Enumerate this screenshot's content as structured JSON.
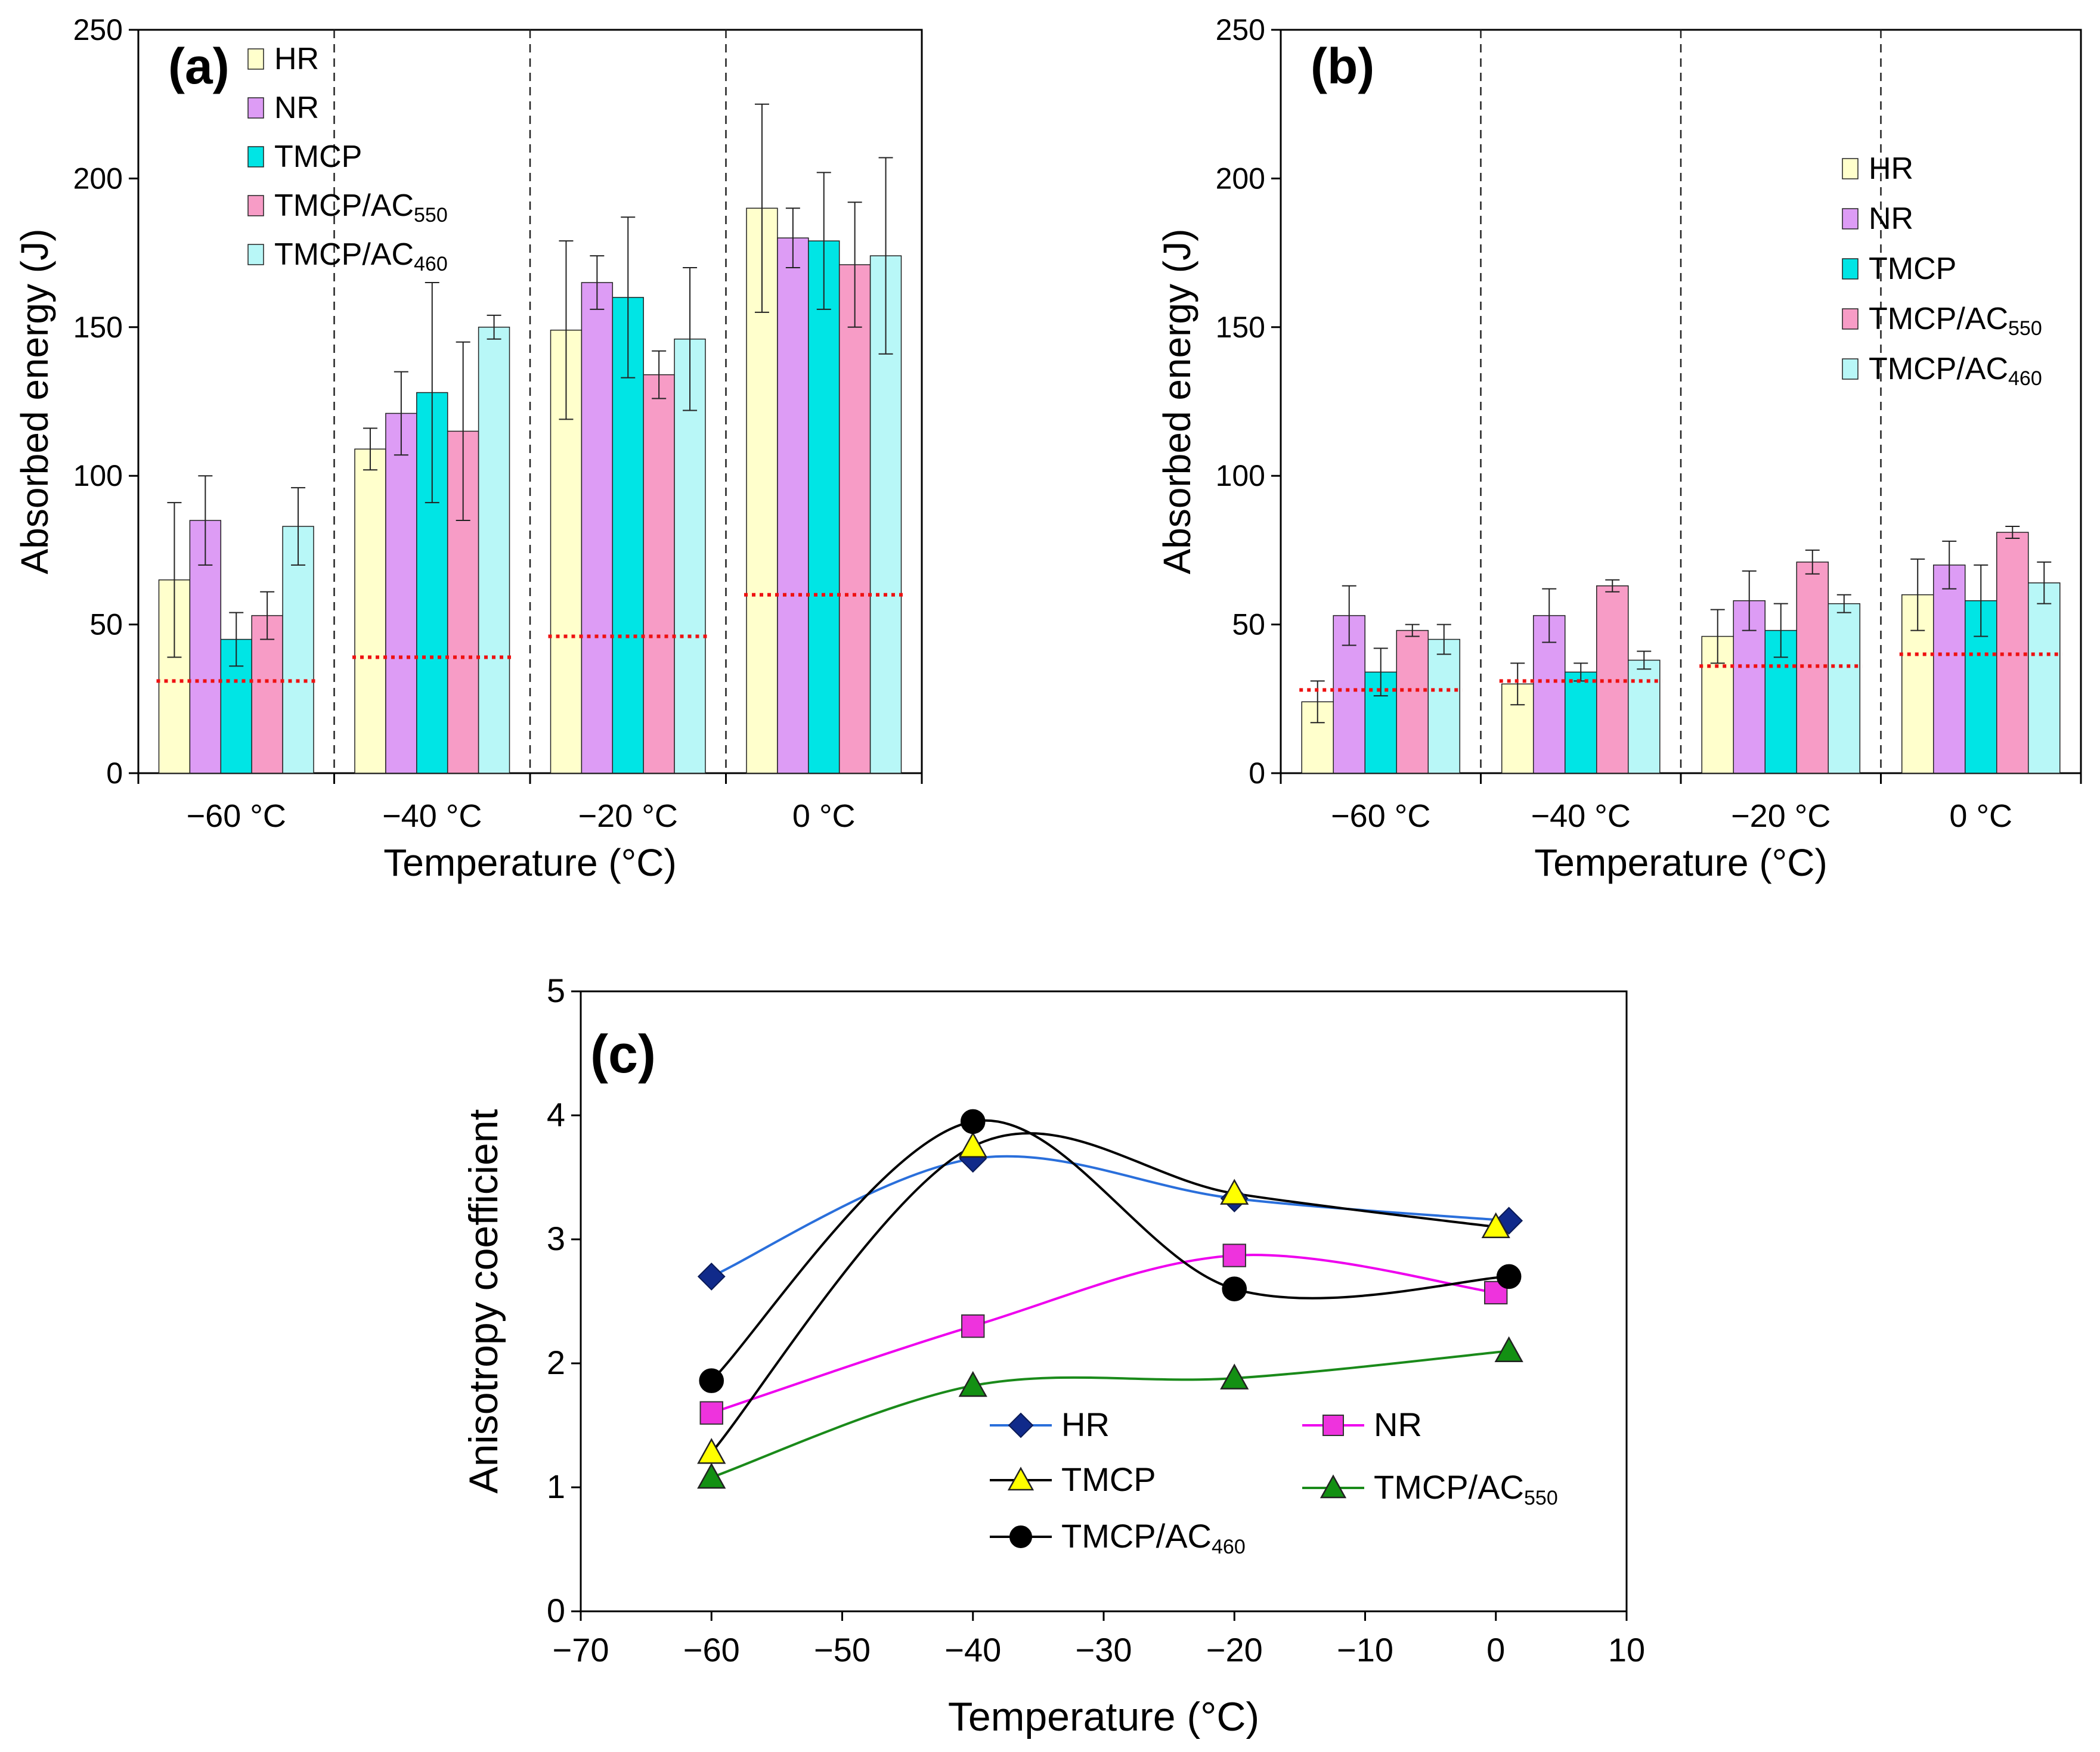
{
  "colors": {
    "HR": "#ffffcc",
    "NR": "#dd9cf5",
    "TMCP": "#00e5e5",
    "TMCP/AC550": "#f79cc6",
    "TMCP/AC460": "#b8f7f7",
    "threshold": "#ee1111",
    "line_HR": "#2a6fdb",
    "line_NR": "#ee00ee",
    "line_TMCP": "#000000",
    "line_AC550": "#1a8a1a",
    "line_AC460": "#000000",
    "marker_HR": "#102a8a",
    "marker_NR": "#ee33dd",
    "marker_TMCP": "#ffff00",
    "marker_AC550": "#139013",
    "marker_AC460": "#000000"
  },
  "chart_data": [
    {
      "id": "a",
      "type": "bar",
      "panel_label": "(a)",
      "categories": [
        "−60 °C",
        "−40 °C",
        "−20 °C",
        "0 °C"
      ],
      "xlabel": "Temperature (°C)",
      "ylabel": "Absorbed energy (J)",
      "ylim": [
        0,
        250
      ],
      "yticks": [
        0,
        50,
        100,
        150,
        200,
        250
      ],
      "legend_position": "top-left",
      "series": [
        {
          "key": "HR",
          "name": "HR",
          "values": [
            65,
            109,
            149,
            190
          ],
          "err": [
            26,
            7,
            30,
            35
          ]
        },
        {
          "key": "NR",
          "name": "NR",
          "values": [
            85,
            121,
            165,
            180
          ],
          "err": [
            15,
            14,
            9,
            10
          ]
        },
        {
          "key": "TMCP",
          "name": "TMCP",
          "values": [
            45,
            128,
            160,
            179
          ],
          "err": [
            9,
            37,
            27,
            23
          ]
        },
        {
          "key": "TMCP/AC550",
          "name": "TMCP/AC",
          "sub": "550",
          "values": [
            53,
            115,
            134,
            171
          ],
          "err": [
            8,
            30,
            8,
            21
          ]
        },
        {
          "key": "TMCP/AC460",
          "name": "TMCP/AC",
          "sub": "460",
          "values": [
            83,
            150,
            146,
            174
          ],
          "err": [
            13,
            4,
            24,
            33
          ]
        }
      ],
      "threshold": [
        31,
        39,
        46,
        60
      ]
    },
    {
      "id": "b",
      "type": "bar",
      "panel_label": "(b)",
      "categories": [
        "−60 °C",
        "−40 °C",
        "−20 °C",
        "0 °C"
      ],
      "xlabel": "Temperature (°C)",
      "ylabel": "Absorbed energy (J)",
      "ylim": [
        0,
        250
      ],
      "yticks": [
        0,
        50,
        100,
        150,
        200,
        250
      ],
      "legend_position": "right",
      "series": [
        {
          "key": "HR",
          "name": "HR",
          "values": [
            24,
            30,
            46,
            60
          ],
          "err": [
            7,
            7,
            9,
            12
          ]
        },
        {
          "key": "NR",
          "name": "NR",
          "values": [
            53,
            53,
            58,
            70
          ],
          "err": [
            10,
            9,
            10,
            8
          ]
        },
        {
          "key": "TMCP",
          "name": "TMCP",
          "values": [
            34,
            34,
            48,
            58
          ],
          "err": [
            8,
            3,
            9,
            12
          ]
        },
        {
          "key": "TMCP/AC550",
          "name": "TMCP/AC",
          "sub": "550",
          "values": [
            48,
            63,
            71,
            81
          ],
          "err": [
            2,
            2,
            4,
            2
          ]
        },
        {
          "key": "TMCP/AC460",
          "name": "TMCP/AC",
          "sub": "460",
          "values": [
            45,
            38,
            57,
            64
          ],
          "err": [
            5,
            3,
            3,
            7
          ]
        }
      ],
      "threshold": [
        28,
        31,
        36,
        40
      ]
    },
    {
      "id": "c",
      "type": "line",
      "panel_label": "(c)",
      "xlabel": "Temperature (°C)",
      "ylabel": "Anisotropy coefficient",
      "xlim": [
        -70,
        10
      ],
      "ylim": [
        0,
        5
      ],
      "xticks": [
        -70,
        -60,
        -50,
        -40,
        -30,
        -20,
        -10,
        0,
        10
      ],
      "xtick_labels": [
        "−70",
        "−60",
        "−50",
        "−40",
        "−30",
        "−20",
        "−10",
        "0",
        "10"
      ],
      "yticks": [
        0,
        1,
        2,
        3,
        4,
        5
      ],
      "legend_position": "bottom-center",
      "series": [
        {
          "key": "HR",
          "name": "HR",
          "marker": "diamond",
          "x": [
            -60,
            -40,
            -20,
            1
          ],
          "y": [
            2.7,
            3.65,
            3.33,
            3.15
          ]
        },
        {
          "key": "NR",
          "name": "NR",
          "marker": "square",
          "x": [
            -60,
            -40,
            -20,
            0
          ],
          "y": [
            1.6,
            2.3,
            2.87,
            2.57
          ]
        },
        {
          "key": "TMCP",
          "name": "TMCP",
          "marker": "triangle",
          "x": [
            -60,
            -40,
            -20,
            0
          ],
          "y": [
            1.28,
            3.75,
            3.37,
            3.1
          ]
        },
        {
          "key": "TMCP/AC550",
          "name": "TMCP/AC",
          "sub": "550",
          "marker": "triangle",
          "x": [
            -60,
            -40,
            -20,
            1
          ],
          "y": [
            1.08,
            1.82,
            1.88,
            2.1
          ]
        },
        {
          "key": "TMCP/AC460",
          "name": "TMCP/AC",
          "sub": "460",
          "marker": "circle",
          "x": [
            -60,
            -40,
            -20,
            1
          ],
          "y": [
            1.86,
            3.95,
            2.6,
            2.7
          ]
        }
      ]
    }
  ]
}
